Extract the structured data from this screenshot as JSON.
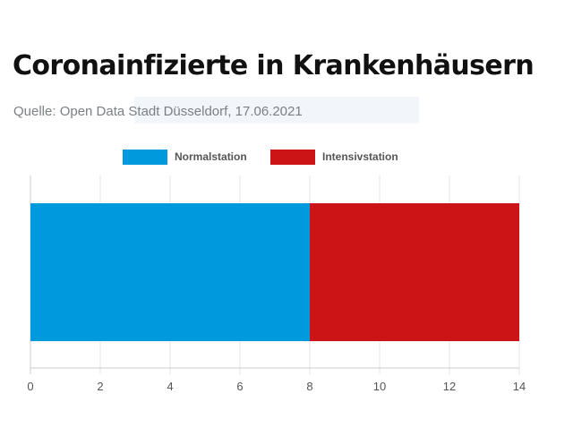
{
  "title": "Coronainfizierte in Krankenhäusern",
  "source": "Quelle: Open Data Stadt Düsseldorf, 17.06.2021",
  "chart_data": {
    "type": "bar",
    "orientation": "horizontal",
    "stacked": true,
    "categories": [
      ""
    ],
    "series": [
      {
        "name": "Normalstation",
        "values": [
          8
        ],
        "color": "#0099dd"
      },
      {
        "name": "Intensivstation",
        "values": [
          6
        ],
        "color": "#cc1417"
      }
    ],
    "xlim": [
      0,
      14
    ],
    "xticks": [
      0,
      2,
      4,
      6,
      8,
      10,
      12,
      14
    ],
    "grid": true,
    "legend": "top"
  }
}
